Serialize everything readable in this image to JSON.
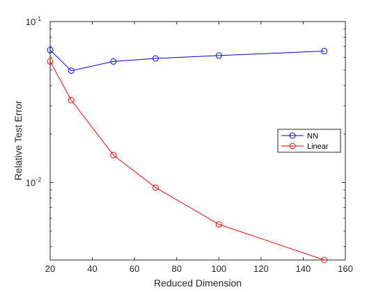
{
  "chart_data": {
    "type": "line",
    "xlabel": "Reduced Dimension",
    "ylabel": "Relative Test Error",
    "xlim": [
      20,
      160
    ],
    "ylim": [
      0.0033,
      0.1
    ],
    "yscale": "log",
    "x_ticks": [
      20,
      40,
      60,
      80,
      100,
      120,
      140,
      160
    ],
    "y_major_ticks": [
      {
        "value": 0.1,
        "base": "10",
        "exp": "-1"
      },
      {
        "value": 0.01,
        "base": "10",
        "exp": "-2"
      }
    ],
    "y_minor_ticks": [
      0.004,
      0.005,
      0.006,
      0.007,
      0.008,
      0.009,
      0.02,
      0.03,
      0.04,
      0.05,
      0.06,
      0.07,
      0.08,
      0.09
    ],
    "grid": false,
    "legend_position": "right",
    "series": [
      {
        "name": "NN",
        "color": "#0000ff",
        "marker": "circle",
        "x": [
          20,
          30,
          50,
          70,
          100,
          150
        ],
        "y": [
          0.0665,
          0.0495,
          0.0565,
          0.059,
          0.0615,
          0.0655
        ]
      },
      {
        "name": "Linear",
        "color": "#ff0000",
        "marker": "circle",
        "x": [
          20,
          30,
          50,
          70,
          100,
          150
        ],
        "y": [
          0.0565,
          0.0325,
          0.0148,
          0.0093,
          0.0055,
          0.0033
        ]
      }
    ]
  }
}
